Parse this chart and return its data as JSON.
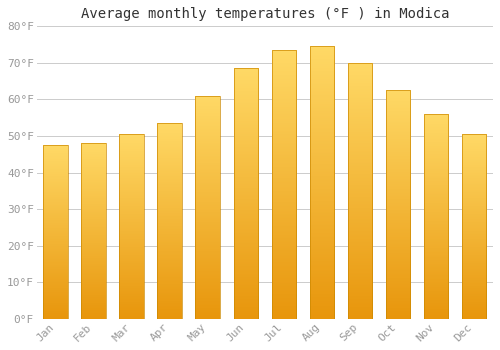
{
  "title": "Average monthly temperatures (°F ) in Modica",
  "months": [
    "Jan",
    "Feb",
    "Mar",
    "Apr",
    "May",
    "Jun",
    "Jul",
    "Aug",
    "Sep",
    "Oct",
    "Nov",
    "Dec"
  ],
  "values": [
    47.5,
    48.0,
    50.5,
    53.5,
    61.0,
    68.5,
    73.5,
    74.5,
    70.0,
    62.5,
    56.0,
    50.5
  ],
  "ylim": [
    0,
    80
  ],
  "yticks": [
    0,
    10,
    20,
    30,
    40,
    50,
    60,
    70,
    80
  ],
  "ytick_labels": [
    "0°F",
    "10°F",
    "20°F",
    "30°F",
    "40°F",
    "50°F",
    "60°F",
    "70°F",
    "80°F"
  ],
  "bar_color_bottom": "#E8960C",
  "bar_color_top": "#FFD966",
  "background_color": "#FFFFFF",
  "grid_color": "#CCCCCC",
  "title_fontsize": 10,
  "tick_fontsize": 8,
  "tick_color": "#999999",
  "title_color": "#333333",
  "bar_edge_color": "#CC8800",
  "bar_width": 0.65
}
